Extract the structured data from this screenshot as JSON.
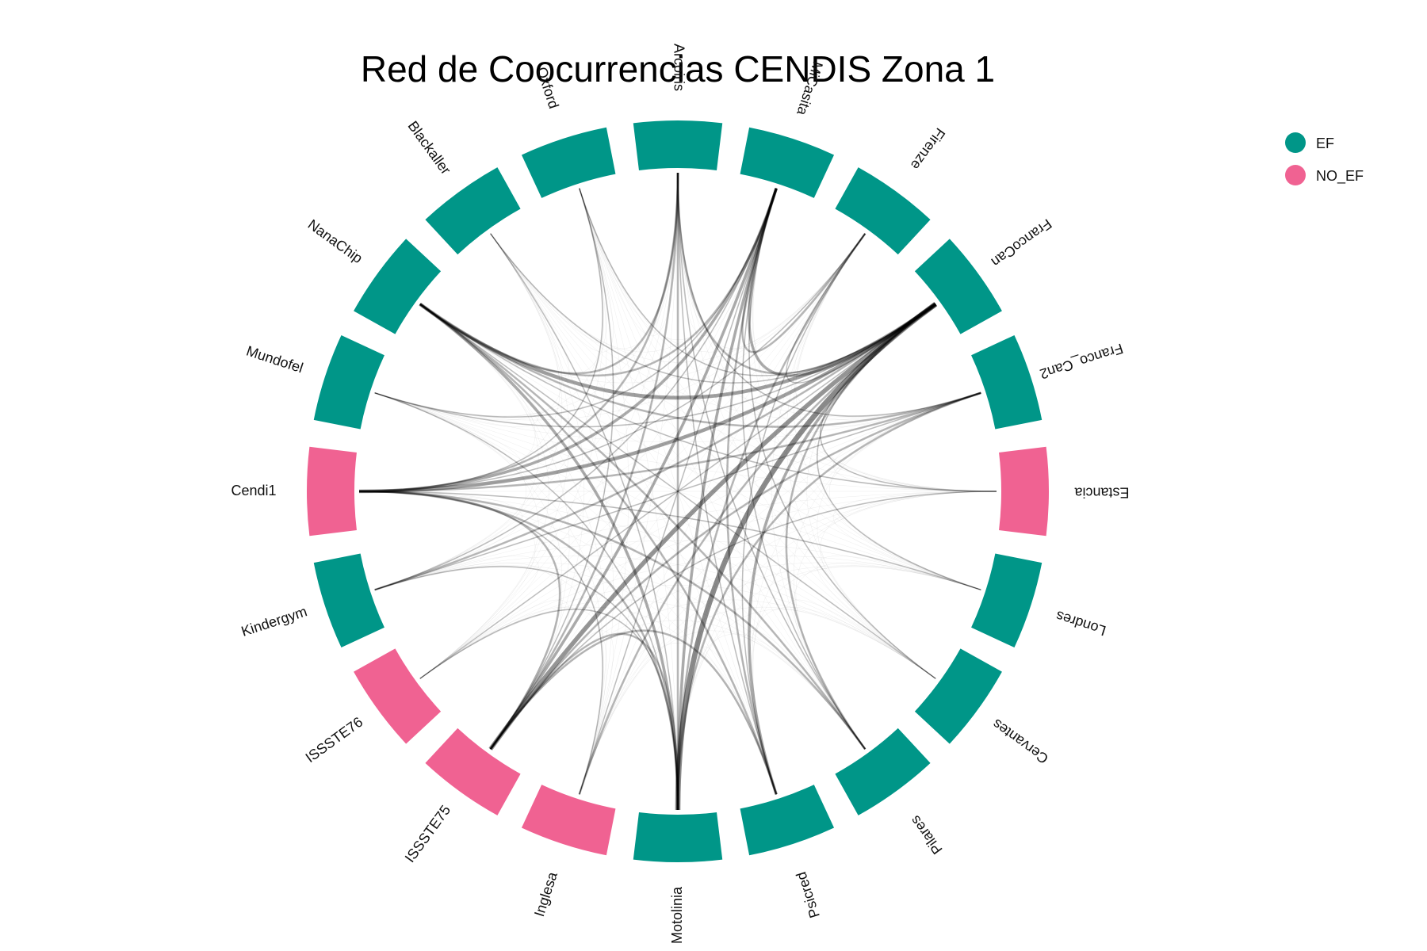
{
  "chart_data": {
    "type": "chord",
    "title": "Red de Coocurrencias CENDIS Zona 1",
    "groups": [
      {
        "name": "EF",
        "color": "#009688"
      },
      {
        "name": "NO_EF",
        "color": "#f06292"
      }
    ],
    "nodes": [
      {
        "name": "Arcoiris",
        "group": "EF"
      },
      {
        "name": "MiCasita",
        "group": "EF"
      },
      {
        "name": "Firenze",
        "group": "EF"
      },
      {
        "name": "FrancoCan",
        "group": "EF"
      },
      {
        "name": "Franco_Can2",
        "group": "EF"
      },
      {
        "name": "Estancia",
        "group": "NO_EF"
      },
      {
        "name": "Londres",
        "group": "EF"
      },
      {
        "name": "Cervantes",
        "group": "EF"
      },
      {
        "name": "Pilares",
        "group": "EF"
      },
      {
        "name": "Psicred",
        "group": "EF"
      },
      {
        "name": "Motolinia",
        "group": "EF"
      },
      {
        "name": "Inglesa",
        "group": "NO_EF"
      },
      {
        "name": "ISSSTE75",
        "group": "NO_EF"
      },
      {
        "name": "ISSSTE76",
        "group": "NO_EF"
      },
      {
        "name": "Kindergym",
        "group": "EF"
      },
      {
        "name": "Cendi1",
        "group": "NO_EF"
      },
      {
        "name": "Mundofel",
        "group": "EF"
      },
      {
        "name": "NanaChip",
        "group": "EF"
      },
      {
        "name": "Blackaller",
        "group": "EF"
      },
      {
        "name": "Oxford",
        "group": "EF"
      }
    ],
    "links": [
      {
        "source": "FrancoCan",
        "target": "Motolinia",
        "weight": 6
      },
      {
        "source": "FrancoCan",
        "target": "ISSSTE75",
        "weight": 5
      },
      {
        "source": "FrancoCan",
        "target": "Cendi1",
        "weight": 4
      },
      {
        "source": "FrancoCan",
        "target": "NanaChip",
        "weight": 4
      },
      {
        "source": "FrancoCan",
        "target": "MiCasita",
        "weight": 3
      },
      {
        "source": "FrancoCan",
        "target": "Psicred",
        "weight": 3
      },
      {
        "source": "FrancoCan",
        "target": "Kindergym",
        "weight": 2
      },
      {
        "source": "FrancoCan",
        "target": "Arcoiris",
        "weight": 2
      },
      {
        "source": "FrancoCan",
        "target": "Pilares",
        "weight": 2
      },
      {
        "source": "FrancoCan",
        "target": "Inglesa",
        "weight": 2
      },
      {
        "source": "MiCasita",
        "target": "Cendi1",
        "weight": 3
      },
      {
        "source": "MiCasita",
        "target": "ISSSTE75",
        "weight": 3
      },
      {
        "source": "MiCasita",
        "target": "Motolinia",
        "weight": 3
      },
      {
        "source": "MiCasita",
        "target": "NanaChip",
        "weight": 2
      },
      {
        "source": "MiCasita",
        "target": "Psicred",
        "weight": 2
      },
      {
        "source": "MiCasita",
        "target": "Firenze",
        "weight": 2
      },
      {
        "source": "NanaChip",
        "target": "Motolinia",
        "weight": 3
      },
      {
        "source": "NanaChip",
        "target": "Psicred",
        "weight": 2
      },
      {
        "source": "NanaChip",
        "target": "Pilares",
        "weight": 2
      },
      {
        "source": "NanaChip",
        "target": "Franco_Can2",
        "weight": 2
      },
      {
        "source": "NanaChip",
        "target": "Arcoiris",
        "weight": 2
      },
      {
        "source": "Cendi1",
        "target": "Motolinia",
        "weight": 2
      },
      {
        "source": "Cendi1",
        "target": "ISSSTE75",
        "weight": 2
      },
      {
        "source": "Cendi1",
        "target": "Franco_Can2",
        "weight": 2
      },
      {
        "source": "Cendi1",
        "target": "Arcoiris",
        "weight": 2
      },
      {
        "source": "Cendi1",
        "target": "Pilares",
        "weight": 2
      },
      {
        "source": "ISSSTE75",
        "target": "Arcoiris",
        "weight": 2
      },
      {
        "source": "ISSSTE75",
        "target": "Motolinia",
        "weight": 2
      },
      {
        "source": "ISSSTE75",
        "target": "Psicred",
        "weight": 2
      },
      {
        "source": "ISSSTE75",
        "target": "Franco_Can2",
        "weight": 2
      },
      {
        "source": "Motolinia",
        "target": "Arcoiris",
        "weight": 2
      },
      {
        "source": "Motolinia",
        "target": "Firenze",
        "weight": 2
      },
      {
        "source": "Motolinia",
        "target": "Franco_Can2",
        "weight": 2
      },
      {
        "source": "Psicred",
        "target": "Arcoiris",
        "weight": 1
      },
      {
        "source": "Psicred",
        "target": "Firenze",
        "weight": 1
      },
      {
        "source": "Pilares",
        "target": "MiCasita",
        "weight": 1
      },
      {
        "source": "Kindergym",
        "target": "MiCasita",
        "weight": 1
      },
      {
        "source": "Kindergym",
        "target": "Franco_Can2",
        "weight": 1
      },
      {
        "source": "Kindergym",
        "target": "Motolinia",
        "weight": 1
      },
      {
        "source": "Mundofel",
        "target": "FrancoCan",
        "weight": 1
      },
      {
        "source": "Mundofel",
        "target": "Motolinia",
        "weight": 1
      },
      {
        "source": "Mundofel",
        "target": "MiCasita",
        "weight": 1
      },
      {
        "source": "Blackaller",
        "target": "Motolinia",
        "weight": 1
      },
      {
        "source": "Blackaller",
        "target": "FrancoCan",
        "weight": 1
      },
      {
        "source": "Oxford",
        "target": "FrancoCan",
        "weight": 1
      },
      {
        "source": "Oxford",
        "target": "ISSSTE75",
        "weight": 1
      },
      {
        "source": "Oxford",
        "target": "Cendi1",
        "weight": 1
      },
      {
        "source": "Estancia",
        "target": "FrancoCan",
        "weight": 1
      },
      {
        "source": "Estancia",
        "target": "ISSSTE75",
        "weight": 1
      },
      {
        "source": "Estancia",
        "target": "NanaChip",
        "weight": 1
      },
      {
        "source": "Londres",
        "target": "FrancoCan",
        "weight": 1
      },
      {
        "source": "Londres",
        "target": "Cendi1",
        "weight": 1
      },
      {
        "source": "Cervantes",
        "target": "NanaChip",
        "weight": 1
      },
      {
        "source": "Cervantes",
        "target": "MiCasita",
        "weight": 1
      },
      {
        "source": "Inglesa",
        "target": "MiCasita",
        "weight": 1
      },
      {
        "source": "Inglesa",
        "target": "Cendi1",
        "weight": 1
      },
      {
        "source": "ISSSTE76",
        "target": "FrancoCan",
        "weight": 1
      },
      {
        "source": "ISSSTE76",
        "target": "Motolinia",
        "weight": 1
      },
      {
        "source": "Firenze",
        "target": "FrancoCan",
        "weight": 1
      },
      {
        "source": "Firenze",
        "target": "Cendi1",
        "weight": 1
      },
      {
        "source": "Arcoiris",
        "target": "Franco_Can2",
        "weight": 1
      },
      {
        "source": "Pilares",
        "target": "Arcoiris",
        "weight": 1
      }
    ]
  }
}
